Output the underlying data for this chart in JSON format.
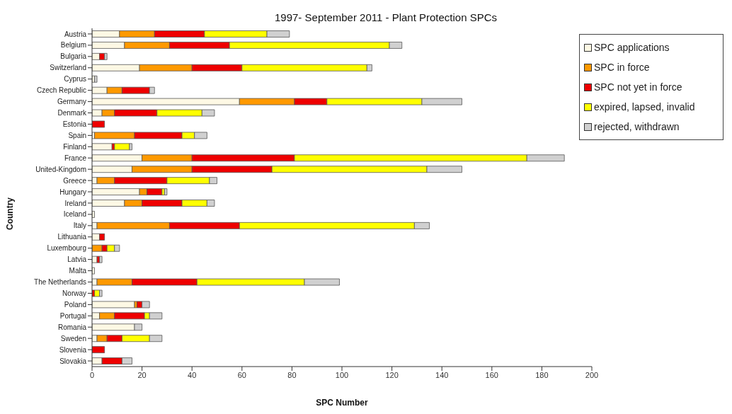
{
  "chart_data": {
    "type": "bar",
    "orientation": "horizontal",
    "stacked": true,
    "title": "1997- September 2011 - Plant Protection SPCs",
    "xlabel": "SPC Number",
    "ylabel": "Country",
    "categories": [
      "Austria",
      "Belgium",
      "Bulgaria",
      "Switzerland",
      "Cyprus",
      "Czech Republic",
      "Germany",
      "Denmark",
      "Estonia",
      "Spain",
      "Finland",
      "France",
      "United-Kingdom",
      "Greece",
      "Hungary",
      "Ireland",
      "Iceland",
      "Italy",
      "Lithuania",
      "Luxembourg",
      "Latvia",
      "Malta",
      "The Netherlands",
      "Norway",
      "Poland",
      "Portugal",
      "Romania",
      "Sweden",
      "Slovenia",
      "Slovakia"
    ],
    "series": [
      {
        "name": "SPC applications",
        "color": "#fdf8e4",
        "values": [
          11,
          13,
          3,
          19,
          1,
          6,
          59,
          4,
          0,
          1,
          8,
          20,
          16,
          2,
          19,
          13,
          1,
          2,
          3,
          0,
          2,
          1,
          2,
          0,
          17,
          3,
          17,
          2,
          0,
          4
        ]
      },
      {
        "name": "SPC in force",
        "color": "#ff9900",
        "values": [
          14,
          18,
          0,
          21,
          0,
          6,
          22,
          5,
          0,
          16,
          0,
          20,
          24,
          7,
          3,
          7,
          0,
          29,
          0,
          4,
          0,
          0,
          14,
          0,
          1,
          6,
          0,
          4,
          0,
          0
        ]
      },
      {
        "name": "SPC not yet in force",
        "color": "#ee0000",
        "values": [
          20,
          24,
          2,
          20,
          0,
          11,
          13,
          17,
          5,
          19,
          1,
          41,
          32,
          21,
          6,
          16,
          0,
          28,
          2,
          2,
          1,
          0,
          26,
          1,
          2,
          12,
          0,
          6,
          5,
          8
        ]
      },
      {
        "name": "expired, lapsed, invalid",
        "color": "#ffff00",
        "values": [
          25,
          64,
          0,
          50,
          0,
          0,
          38,
          18,
          0,
          5,
          6,
          93,
          62,
          17,
          1,
          10,
          0,
          70,
          0,
          3,
          0,
          0,
          43,
          2,
          0,
          2,
          0,
          11,
          0,
          0
        ]
      },
      {
        "name": "rejected, withdrawn",
        "color": "#d0d0d0",
        "values": [
          9,
          5,
          1,
          2,
          1,
          2,
          16,
          5,
          0,
          5,
          1,
          15,
          14,
          3,
          1,
          3,
          0,
          6,
          0,
          2,
          1,
          0,
          14,
          1,
          3,
          5,
          3,
          5,
          0,
          4
        ]
      }
    ],
    "xlim": [
      0,
      200
    ],
    "xticks": [
      0,
      20,
      40,
      60,
      80,
      100,
      120,
      140,
      160,
      180,
      200
    ],
    "legend": "top right"
  }
}
